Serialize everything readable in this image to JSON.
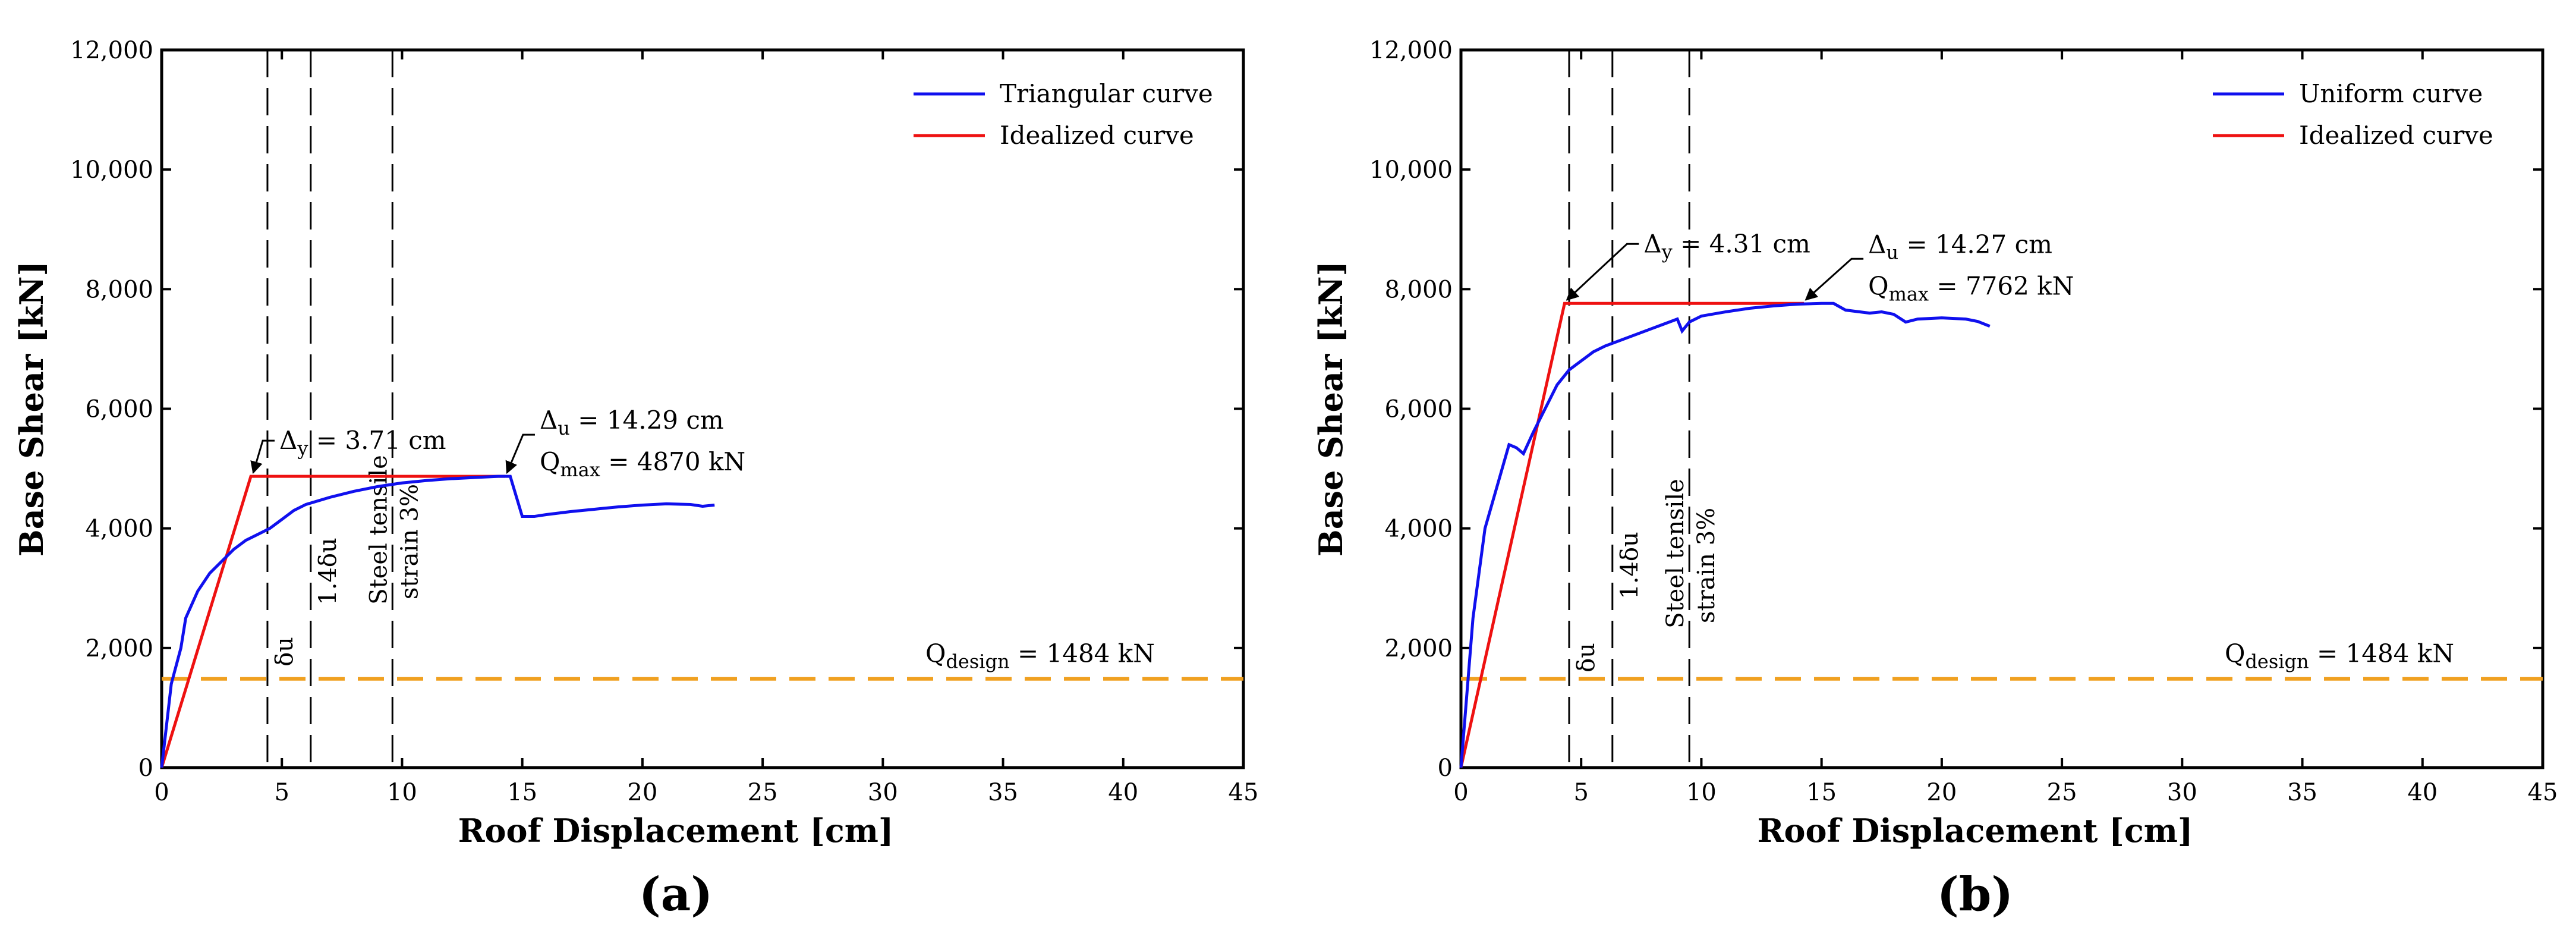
{
  "chart_data": [
    {
      "type": "line",
      "panel_label": "(a)",
      "xlabel": "Roof Displacement [cm]",
      "ylabel": "Base Shear [kN]",
      "xlim": [
        0,
        45
      ],
      "ylim": [
        0,
        12000
      ],
      "xticks": [
        0,
        5,
        10,
        15,
        20,
        25,
        30,
        35,
        40,
        45
      ],
      "yticks": [
        0,
        2000,
        4000,
        6000,
        8000,
        10000,
        12000
      ],
      "xtick_labels": [
        "0",
        "5",
        "10",
        "15",
        "20",
        "25",
        "30",
        "35",
        "40",
        "45"
      ],
      "ytick_labels": [
        "0",
        "2,000",
        "4,000",
        "6,000",
        "8,000",
        "10,000",
        "12,000"
      ],
      "legend_position": "top-right",
      "series": [
        {
          "name": "Triangular curve",
          "color": "#1010ee",
          "x": [
            0,
            0.4,
            0.8,
            1.0,
            1.5,
            2.0,
            2.5,
            3.0,
            3.5,
            4.0,
            4.5,
            5.0,
            5.5,
            6.0,
            7.0,
            8.0,
            9.0,
            10.0,
            11.0,
            12.0,
            13.0,
            14.0,
            14.5,
            15.0,
            15.5,
            16.0,
            17.0,
            18.0,
            19.0,
            20.0,
            21.0,
            22.0,
            22.5,
            23.0
          ],
          "y": [
            0,
            1400,
            2000,
            2500,
            2950,
            3250,
            3450,
            3650,
            3800,
            3900,
            4000,
            4150,
            4300,
            4400,
            4520,
            4620,
            4700,
            4760,
            4800,
            4830,
            4850,
            4870,
            4870,
            4200,
            4200,
            4230,
            4280,
            4320,
            4360,
            4390,
            4410,
            4400,
            4370,
            4390
          ]
        },
        {
          "name": "Idealized curve",
          "color": "#ee1111",
          "x": [
            0,
            3.71,
            14.29
          ],
          "y": [
            0,
            4870,
            4870
          ]
        }
      ],
      "vertical_lines": [
        {
          "x": 4.4,
          "label": "δu"
        },
        {
          "x": 6.2,
          "label": "1.4δu"
        },
        {
          "x": 9.6,
          "label_line1": "Steel tensile",
          "label_line2": "strain 3%"
        }
      ],
      "design_line": {
        "y": 1484,
        "color": "#f0a020",
        "label_main": "Q",
        "label_sub": "design",
        "label_value": " = 1484 kN"
      },
      "annotations": {
        "yield": {
          "x": 3.71,
          "y": 4870,
          "symbol": "Δ",
          "sub": "y",
          "value": " = 3.71 cm"
        },
        "ultimate": {
          "x": 14.29,
          "y": 4870,
          "symbol": "Δ",
          "sub": "u",
          "value": " = 14.29 cm",
          "q_main": "Q",
          "q_sub": "max",
          "q_value": " = 4870 kN"
        }
      }
    },
    {
      "type": "line",
      "panel_label": "(b)",
      "xlabel": "Roof Displacement [cm]",
      "ylabel": "Base Shear [kN]",
      "xlim": [
        0,
        45
      ],
      "ylim": [
        0,
        12000
      ],
      "xticks": [
        0,
        5,
        10,
        15,
        20,
        25,
        30,
        35,
        40,
        45
      ],
      "yticks": [
        0,
        2000,
        4000,
        6000,
        8000,
        10000,
        12000
      ],
      "xtick_labels": [
        "0",
        "5",
        "10",
        "15",
        "20",
        "25",
        "30",
        "35",
        "40",
        "45"
      ],
      "ytick_labels": [
        "0",
        "2,000",
        "4,000",
        "6,000",
        "8,000",
        "10,000",
        "12,000"
      ],
      "legend_position": "top-right",
      "series": [
        {
          "name": "Uniform curve",
          "color": "#1010ee",
          "x": [
            0,
            0.5,
            1.0,
            1.5,
            2.0,
            2.3,
            2.6,
            3.0,
            3.5,
            4.0,
            4.5,
            5.0,
            5.5,
            6.0,
            7.0,
            8.0,
            9.0,
            9.2,
            9.5,
            10.0,
            11.0,
            12.0,
            13.0,
            14.0,
            15.0,
            15.5,
            16.0,
            17.0,
            17.5,
            18.0,
            18.5,
            19.0,
            20.0,
            21.0,
            21.5,
            22.0
          ],
          "y": [
            0,
            2500,
            4000,
            4700,
            5400,
            5350,
            5250,
            5600,
            6000,
            6400,
            6650,
            6800,
            6950,
            7050,
            7200,
            7350,
            7500,
            7300,
            7450,
            7550,
            7620,
            7680,
            7720,
            7750,
            7762,
            7762,
            7650,
            7600,
            7620,
            7580,
            7450,
            7500,
            7520,
            7500,
            7460,
            7380
          ]
        },
        {
          "name": "Idealized curve",
          "color": "#ee1111",
          "x": [
            0,
            4.31,
            14.27
          ],
          "y": [
            0,
            7762,
            7762
          ]
        }
      ],
      "vertical_lines": [
        {
          "x": 4.5,
          "label": "δu"
        },
        {
          "x": 6.3,
          "label": "1.4δu"
        },
        {
          "x": 9.5,
          "label_line1": "Steel tensile",
          "label_line2": "strain 3%"
        }
      ],
      "design_line": {
        "y": 1484,
        "color": "#f0a020",
        "label_main": "Q",
        "label_sub": "design",
        "label_value": " = 1484 kN"
      },
      "annotations": {
        "yield": {
          "x": 4.31,
          "y": 7762,
          "symbol": "Δ",
          "sub": "y",
          "value": " = 4.31 cm"
        },
        "ultimate": {
          "x": 14.27,
          "y": 7762,
          "symbol": "Δ",
          "sub": "u",
          "value": " = 14.27 cm",
          "q_main": "Q",
          "q_sub": "max",
          "q_value": " = 7762 kN"
        }
      }
    }
  ]
}
